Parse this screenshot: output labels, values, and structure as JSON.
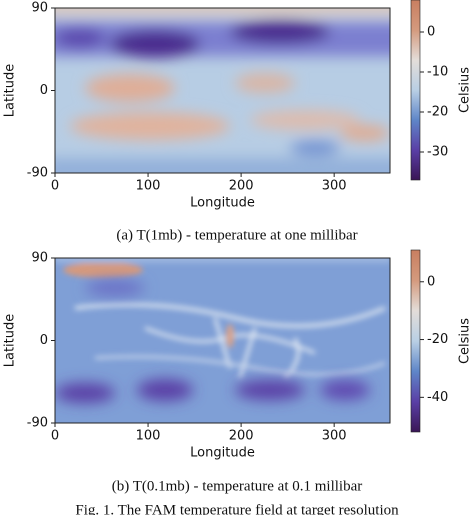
{
  "chart_data": [
    {
      "type": "heatmap",
      "caption": "(a) T(1mb) - temperature at one millibar",
      "x_label": "Longitude",
      "y_label": "Latitude",
      "colorbar_label": "Celsius",
      "xlim": [
        0,
        360
      ],
      "xticks": [
        0,
        100,
        200,
        300
      ],
      "ylim": [
        -90,
        90
      ],
      "yticks": [
        -90,
        0,
        90
      ],
      "clim": [
        -37,
        8
      ],
      "cticks": [
        -30,
        -20,
        -10,
        0
      ],
      "colormap": [
        "#3a1656",
        "#5a3fa6",
        "#5f86c8",
        "#b9cfe4",
        "#e3ddd9",
        "#d49a7e",
        "#c97f60"
      ]
    },
    {
      "type": "heatmap",
      "caption": "(b) T(0.1mb) - temperature at 0.1 millibar",
      "x_label": "Longitude",
      "y_label": "Latitude",
      "colorbar_label": "Celsius",
      "xlim": [
        0,
        360
      ],
      "xticks": [
        0,
        100,
        200,
        300
      ],
      "ylim": [
        -90,
        90
      ],
      "yticks": [
        -90,
        0,
        90
      ],
      "clim": [
        -52,
        11
      ],
      "cticks": [
        -40,
        -20,
        0
      ],
      "colormap": [
        "#3a1656",
        "#5a3fa6",
        "#5f86c8",
        "#b9cfe4",
        "#e3ddd9",
        "#d49a7e",
        "#c97f60"
      ]
    }
  ],
  "footer": "Fig. 1. The FAM temperature field at target resolution"
}
